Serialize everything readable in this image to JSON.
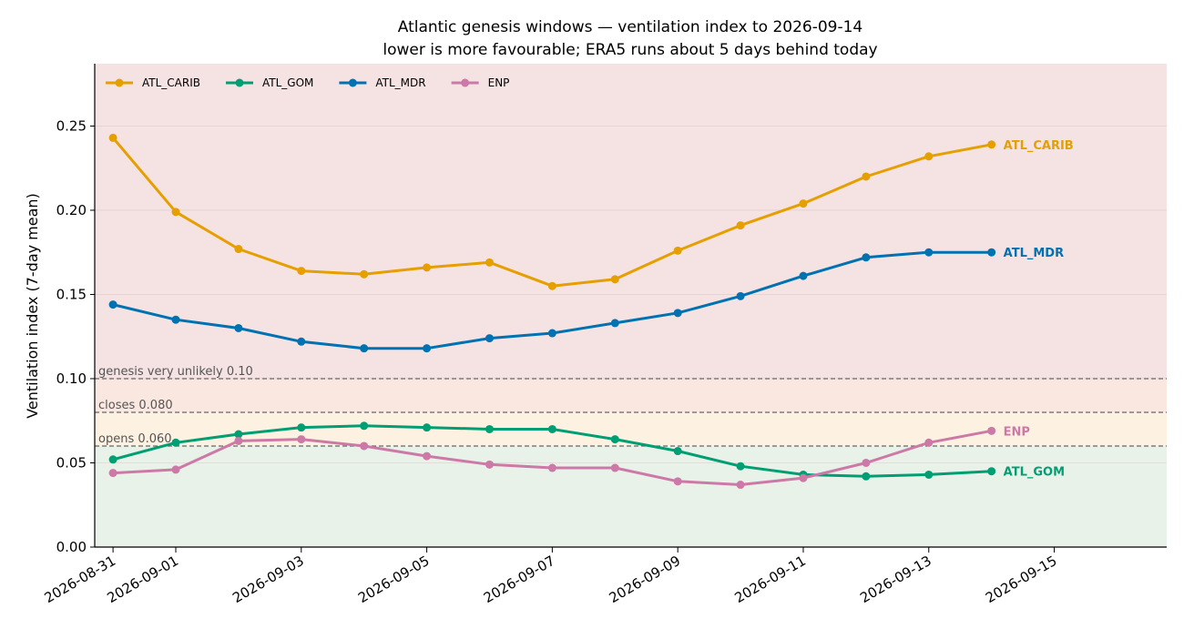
{
  "chart_data": {
    "type": "line",
    "title": "Atlantic genesis windows — ventilation index to 2026-09-14",
    "subtitle": "lower is more favourable; ERA5 runs about 5 days behind today",
    "xlabel": "",
    "ylabel": "Ventilation index (7-day mean)",
    "x": [
      "2026-08-31",
      "2026-09-01",
      "2026-09-02",
      "2026-09-03",
      "2026-09-04",
      "2026-09-05",
      "2026-09-06",
      "2026-09-07",
      "2026-09-08",
      "2026-09-09",
      "2026-09-10",
      "2026-09-11",
      "2026-09-12",
      "2026-09-13",
      "2026-09-14"
    ],
    "x_tick_labels": [
      "2026-08-31",
      "2026-09-01",
      "2026-09-03",
      "2026-09-05",
      "2026-09-07",
      "2026-09-09",
      "2026-09-11",
      "2026-09-13",
      "2026-09-15"
    ],
    "xlim": [
      "2026-08-30T17:00",
      "2026-09-16T19:00"
    ],
    "ylim": [
      0,
      0.287
    ],
    "y_ticks": [
      0.0,
      0.05,
      0.1,
      0.15,
      0.2,
      0.25
    ],
    "grid": "horizontal",
    "legend_placement": "top-left",
    "series": [
      {
        "name": "ATL_CARIB",
        "color": "#E69F00",
        "values": [
          0.243,
          0.199,
          0.177,
          0.164,
          0.162,
          0.166,
          0.169,
          0.155,
          0.159,
          0.176,
          0.191,
          0.204,
          0.22,
          0.232,
          0.239
        ]
      },
      {
        "name": "ATL_GOM",
        "color": "#009E73",
        "values": [
          0.052,
          0.062,
          0.067,
          0.071,
          0.072,
          0.071,
          0.07,
          0.07,
          0.064,
          0.057,
          0.048,
          0.043,
          0.042,
          0.043,
          0.045
        ]
      },
      {
        "name": "ATL_MDR",
        "color": "#0072B2",
        "values": [
          0.144,
          0.135,
          0.13,
          0.122,
          0.118,
          0.118,
          0.124,
          0.127,
          0.133,
          0.139,
          0.149,
          0.161,
          0.172,
          0.175,
          0.175
        ]
      },
      {
        "name": "ENP",
        "color": "#CC79A7",
        "values": [
          0.044,
          0.046,
          0.063,
          0.064,
          0.06,
          0.054,
          0.049,
          0.047,
          0.047,
          0.039,
          0.037,
          0.041,
          0.05,
          0.062,
          0.069
        ]
      }
    ],
    "thresholds": [
      {
        "value": 0.1,
        "label": "genesis very unlikely  0.10"
      },
      {
        "value": 0.08,
        "label": "closes 0.080"
      },
      {
        "value": 0.06,
        "label": "opens  0.060"
      }
    ],
    "bands": [
      {
        "from": 0,
        "to": 0.06,
        "color": "#e8f2e8"
      },
      {
        "from": 0.06,
        "to": 0.08,
        "color": "#fdf2e1"
      },
      {
        "from": 0.08,
        "to": 0.1,
        "color": "#fae7e0"
      },
      {
        "from": 0.1,
        "to": 0.287,
        "color": "#f5e2e2"
      }
    ]
  }
}
